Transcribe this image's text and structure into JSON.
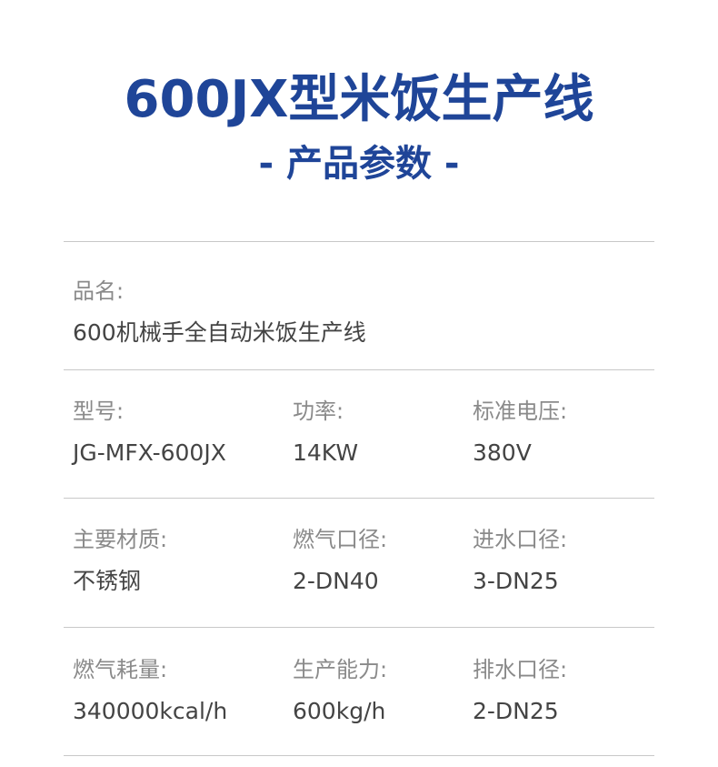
{
  "header": {
    "title": "600JX型米饭生产线",
    "subtitle": "- 产品参数 -"
  },
  "colors": {
    "accent": "#1f4598",
    "label": "#8a8a8a",
    "value": "#444444",
    "divider": "#c8c8c8"
  },
  "rows": [
    [
      {
        "label": "品名:",
        "value": "600机械手全自动米饭生产线"
      }
    ],
    [
      {
        "label": "型号:",
        "value": "JG-MFX-600JX"
      },
      {
        "label": "功率:",
        "value": "14KW"
      },
      {
        "label": "标准电压:",
        "value": "380V"
      }
    ],
    [
      {
        "label": "主要材质:",
        "value": "不锈钢"
      },
      {
        "label": "燃气口径:",
        "value": "2-DN40"
      },
      {
        "label": "进水口径:",
        "value": "3-DN25"
      }
    ],
    [
      {
        "label": "燃气耗量:",
        "value": "340000kcal/h"
      },
      {
        "label": "生产能力:",
        "value": "600kg/h"
      },
      {
        "label": "排水口径:",
        "value": "2-DN25"
      }
    ]
  ]
}
